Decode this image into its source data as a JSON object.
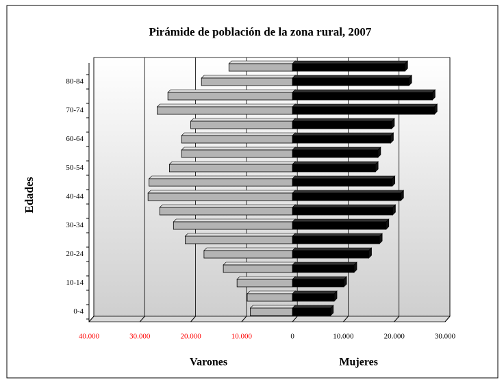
{
  "chart_data": {
    "type": "pyramid",
    "title": "Pirámide de población de la zona rural, 2007",
    "ylabel": "Edades",
    "categories": [
      "0-4",
      null,
      "10-14",
      null,
      "20-24",
      null,
      "30-34",
      null,
      "40-44",
      null,
      "50-54",
      null,
      "60-64",
      null,
      "70-74",
      null,
      "80-84",
      null
    ],
    "series": [
      {
        "name": "Varones",
        "color": "#b4b4b4",
        "values": [
          -8300,
          -8900,
          -10900,
          -13600,
          -17400,
          -21100,
          -23400,
          -26100,
          -28400,
          -28200,
          -24200,
          -21800,
          -21800,
          -20000,
          -26600,
          -24500,
          -17900,
          -12500
        ]
      },
      {
        "name": "Mujeres",
        "color": "#000000",
        "values": [
          7500,
          8200,
          10100,
          12100,
          15000,
          17100,
          18400,
          19700,
          21300,
          19600,
          16300,
          16800,
          19300,
          19500,
          27900,
          27500,
          22900,
          22100
        ]
      }
    ],
    "xlim": [
      -40000,
      30000
    ],
    "xticks": [
      {
        "value": -40000,
        "label": "40.000"
      },
      {
        "value": -30000,
        "label": "30.000"
      },
      {
        "value": -20000,
        "label": "20.000"
      },
      {
        "value": -10000,
        "label": "10.000"
      },
      0,
      {
        "value": 10000,
        "label": "10.000"
      },
      {
        "value": 20000,
        "label": "20.000"
      },
      {
        "value": 30000,
        "label": "30.000"
      }
    ],
    "negative_tick_color": "#ff0000",
    "grid": true
  }
}
